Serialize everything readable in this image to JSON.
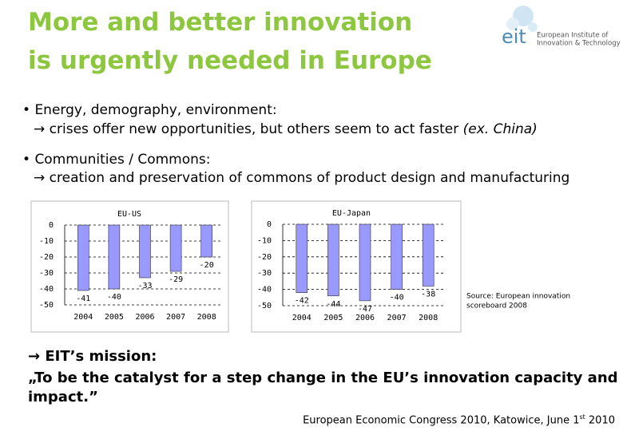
{
  "header": {
    "title_lines": [
      "More and better innovation",
      "is urgently needed in Europe"
    ],
    "logo": {
      "mark": "eit",
      "lines": [
        "European Institute of",
        "Innovation & Technology"
      ]
    }
  },
  "bullets": [
    {
      "text": "Energy, demography, environment:",
      "detail": "crises offer new opportunities, but others seem to act faster",
      "aside": "(ex. China)"
    },
    {
      "text": "Communities / Commons:",
      "detail": "creation and preservation of commons of product design and manufacturing"
    }
  ],
  "chart_data": [
    {
      "type": "bar",
      "title": "EU-US",
      "categories": [
        "2004",
        "2005",
        "2006",
        "2007",
        "2008"
      ],
      "values": [
        -41,
        -40,
        -33,
        -29,
        -20
      ],
      "color": "#9999ff",
      "ylim": [
        -50,
        0
      ],
      "yticks": [
        0,
        -10,
        -20,
        -30,
        -40,
        -50
      ],
      "grid": true
    },
    {
      "type": "bar",
      "title": "EU-Japan",
      "categories": [
        "2004",
        "2005",
        "2006",
        "2007",
        "2008"
      ],
      "values": [
        -42,
        -44,
        -47,
        -40,
        -38
      ],
      "color": "#9999ff",
      "ylim": [
        -50,
        0
      ],
      "yticks": [
        0,
        -10,
        -20,
        -30,
        -40,
        -50
      ],
      "grid": true
    }
  ],
  "source": [
    "Source: European innovation",
    "scoreboard 2008"
  ],
  "mission": {
    "heading": "EIT’s mission:",
    "lines": [
      "„To be the catalyst for a step change in the EU’s innovation capacity and",
      "impact.”"
    ]
  },
  "footer": {
    "text": "European Economic Congress 2010, Katowice, June 1",
    "sup": "st",
    "end": " 2010"
  }
}
